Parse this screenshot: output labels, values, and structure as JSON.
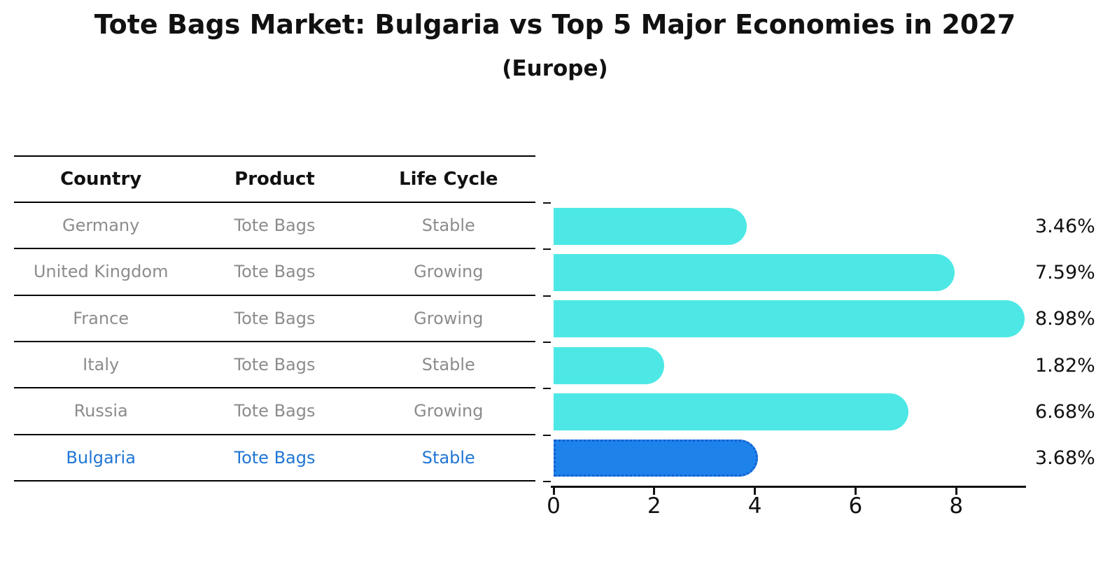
{
  "title": "Tote Bags Market: Bulgaria vs Top 5 Major Economies in 2027",
  "subtitle": "(Europe)",
  "table": {
    "headers": [
      "Country",
      "Product",
      "Life Cycle"
    ],
    "rows": [
      {
        "country": "Germany",
        "product": "Tote Bags",
        "life_cycle": "Stable",
        "highlight": false
      },
      {
        "country": "United Kingdom",
        "product": "Tote Bags",
        "life_cycle": "Growing",
        "highlight": false
      },
      {
        "country": "France",
        "product": "Tote Bags",
        "life_cycle": "Growing",
        "highlight": false
      },
      {
        "country": "Italy",
        "product": "Tote Bags",
        "life_cycle": "Stable",
        "highlight": false
      },
      {
        "country": "Russia",
        "product": "Tote Bags",
        "life_cycle": "Growing",
        "highlight": false
      },
      {
        "country": "Bulgaria",
        "product": "Tote Bags",
        "life_cycle": "Stable",
        "highlight": true
      }
    ]
  },
  "chart_data": {
    "type": "bar",
    "orientation": "horizontal",
    "title": "Tote Bags Market: Bulgaria vs Top 5 Major Economies in 2027",
    "subtitle": "(Europe)",
    "categories": [
      "Germany",
      "United Kingdom",
      "France",
      "Italy",
      "Russia",
      "Bulgaria"
    ],
    "values": [
      3.46,
      7.59,
      8.98,
      1.82,
      6.68,
      3.68
    ],
    "value_labels": [
      "3.46%",
      "7.59%",
      "8.98%",
      "1.82%",
      "6.68%",
      "3.68%"
    ],
    "highlight_index": 5,
    "xlabel": "",
    "ylabel": "",
    "xlim": [
      0,
      9.4
    ],
    "x_ticks": [
      0,
      2,
      4,
      6,
      8
    ],
    "x_tick_labels": [
      "0",
      "2",
      "4",
      "6",
      "8"
    ],
    "grid": false,
    "legend": null
  },
  "colors": {
    "bar": "#4DE8E5",
    "highlight_bar": "#1E82EB",
    "highlight_border": "#1560CE",
    "highlight_text": "#2176D6",
    "row_text": "#8C8C8C",
    "heading_text": "#111111",
    "axis": "#111111"
  }
}
